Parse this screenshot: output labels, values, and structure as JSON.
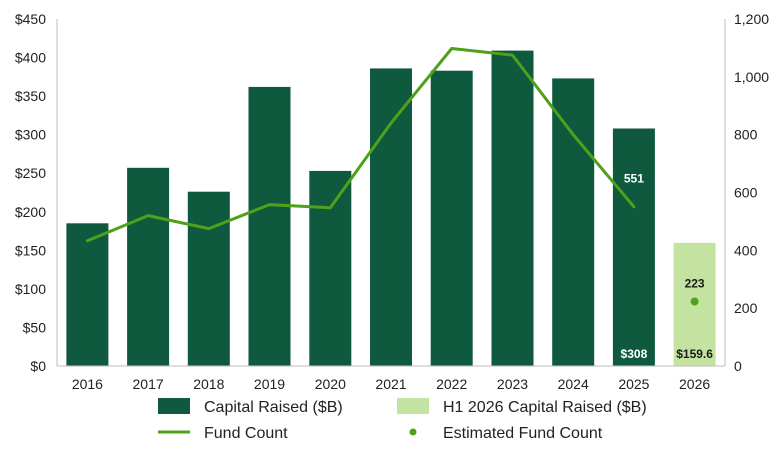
{
  "chart_data": {
    "type": "bar",
    "categories": [
      "2016",
      "2017",
      "2018",
      "2019",
      "2020",
      "2021",
      "2022",
      "2023",
      "2024",
      "2025",
      "2026"
    ],
    "series": [
      {
        "name": "Capital Raised ($B)",
        "type": "bar",
        "axis": "left",
        "color": "#0f5a3f",
        "values": [
          185,
          257,
          226,
          362,
          253,
          386,
          383,
          409,
          373,
          308,
          null
        ]
      },
      {
        "name": "H1 2026 Capital Raised ($B)",
        "type": "bar",
        "axis": "left",
        "color": "#c5e3a0",
        "values": [
          null,
          null,
          null,
          null,
          null,
          null,
          null,
          null,
          null,
          null,
          159.6
        ]
      },
      {
        "name": "Fund Count",
        "type": "line",
        "axis": "right",
        "color": "#4fa01a",
        "values": [
          433,
          520,
          475,
          558,
          547,
          840,
          1098,
          1075,
          800,
          551,
          null
        ]
      },
      {
        "name": "Estimated Fund Count",
        "type": "scatter",
        "axis": "right",
        "color": "#4fa01a",
        "values": [
          null,
          null,
          null,
          null,
          null,
          null,
          null,
          null,
          null,
          null,
          223
        ]
      }
    ],
    "left_axis": {
      "ylim": [
        0,
        450
      ],
      "ticks": [
        0,
        50,
        100,
        150,
        200,
        250,
        300,
        350,
        400,
        450
      ],
      "tick_labels": [
        "$0",
        "$50",
        "$100",
        "$150",
        "$200",
        "$250",
        "$300",
        "$350",
        "$400",
        "$450"
      ]
    },
    "right_axis": {
      "ylim": [
        0,
        1200
      ],
      "ticks": [
        0,
        200,
        400,
        600,
        800,
        1000,
        1200
      ],
      "tick_labels": [
        "0",
        "200",
        "400",
        "600",
        "800",
        "1,000",
        "1,200"
      ]
    },
    "data_labels": [
      {
        "category": "2025",
        "series": "Fund Count",
        "text": "551"
      },
      {
        "category": "2025",
        "series": "Capital Raised ($B)",
        "text": "$308"
      },
      {
        "category": "2026",
        "series": "Estimated Fund Count",
        "text": "223"
      },
      {
        "category": "2026",
        "series": "H1 2026 Capital Raised ($B)",
        "text": "$159.6"
      }
    ],
    "legend": {
      "placement": "bottom",
      "items": [
        {
          "label": "Capital Raised ($B)",
          "marker": "bar",
          "color": "#0f5a3f"
        },
        {
          "label": "H1 2026 Capital Raised ($B)",
          "marker": "bar",
          "color": "#c5e3a0"
        },
        {
          "label": "Fund Count",
          "marker": "line",
          "color": "#4fa01a"
        },
        {
          "label": "Estimated Fund Count",
          "marker": "dot",
          "color": "#4fa01a"
        }
      ]
    },
    "grid": false,
    "title": "",
    "xlabel": "",
    "ylabel": ""
  }
}
